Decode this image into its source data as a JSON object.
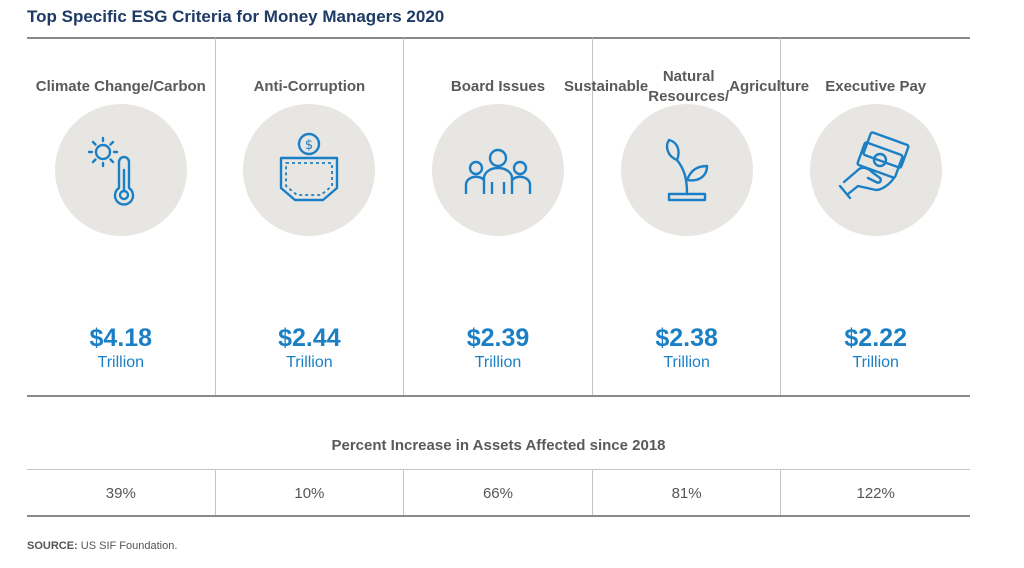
{
  "title": "Top Specific ESG Criteria for Money Managers 2020",
  "colors": {
    "title": "#1e3a66",
    "accent": "#1a7fc4",
    "circle": "#e8e6e3"
  },
  "chart_data": {
    "type": "table",
    "categories": [
      "Climate Change/ Carbon",
      "Anti-Corruption",
      "Board Issues",
      "Sustainable Natural Resources/ Agriculture",
      "Executive Pay"
    ],
    "category_lines": [
      [
        "Climate Change/",
        "Carbon"
      ],
      [
        "Anti-Corruption"
      ],
      [
        "Board Issues"
      ],
      [
        "Sustainable",
        "Natural Resources/",
        "Agriculture"
      ],
      [
        "Executive Pay"
      ]
    ],
    "values": [
      4.18,
      2.44,
      2.39,
      2.38,
      2.22
    ],
    "value_labels": [
      "$4.18",
      "$2.44",
      "$2.39",
      "$2.38",
      "$2.22"
    ],
    "unit": "Trillion",
    "icons": [
      "thermometer-sun-icon",
      "pocket-coin-icon",
      "people-group-icon",
      "plant-sprout-icon",
      "hand-money-icon"
    ],
    "pct_title": "Percent Increase in Assets Affected since 2018",
    "pct_values": [
      39,
      10,
      66,
      81,
      122
    ],
    "pct_labels": [
      "39%",
      "10%",
      "66%",
      "81%",
      "122%"
    ]
  },
  "source": {
    "prefix": "SOURCE:",
    "text": " US SIF Foundation."
  }
}
